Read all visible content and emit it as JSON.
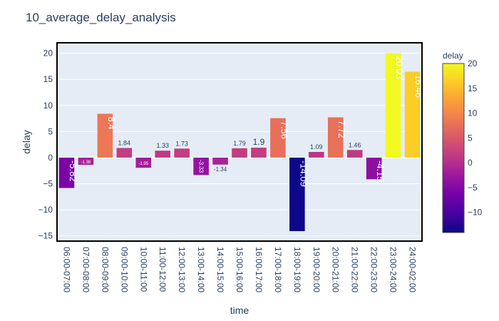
{
  "chart_data": {
    "type": "bar",
    "title": "10_average_delay_analysis",
    "xlabel": "time",
    "ylabel": "delay",
    "ylim": [
      -16,
      22
    ],
    "y_ticks": [
      -15,
      -10,
      -5,
      0,
      5,
      10,
      15,
      20
    ],
    "y_tick_labels": [
      "−15",
      "−10",
      "−5",
      "0",
      "5",
      "10",
      "15",
      "20"
    ],
    "categories": [
      "06:00-07:00",
      "07:00-08:00",
      "08:00-09:00",
      "09:00-10:00",
      "10:00-11:00",
      "11:00-12:00",
      "12:00-13:00",
      "13:00-14:00",
      "14:00-15:00",
      "15:00-16:00",
      "16:00-17:00",
      "17:00-18:00",
      "18:00-19:00",
      "19:00-20:00",
      "20:00-21:00",
      "21:00-22:00",
      "22:00-23:00",
      "23:00-24:00",
      "24:00-02:00"
    ],
    "values": [
      -5.82,
      -1.38,
      8.4,
      1.84,
      -1.95,
      1.33,
      1.73,
      -3.33,
      -1.34,
      1.79,
      1.9,
      7.56,
      -14.09,
      1.09,
      7.72,
      1.46,
      -4.15,
      20.03,
      16.46
    ],
    "value_labels": [
      "-5.82",
      "-1.38",
      "8.4",
      "1.84",
      "-1.95",
      "1.33",
      "1.73",
      "-3.33",
      "-1.34",
      "1.79",
      "1.9",
      "7.56",
      "-14.09",
      "1.09",
      "7.72",
      "1.46",
      "-4.15",
      "20.03",
      "16.46"
    ],
    "colorscale": "plasma",
    "colorbar": {
      "title": "delay",
      "range": [
        -14.09,
        20.03
      ],
      "ticks": [
        -10,
        -5,
        0,
        5,
        10,
        15,
        20
      ],
      "tick_labels": [
        "−10",
        "−5",
        "0",
        "5",
        "10",
        "15",
        "20"
      ]
    },
    "plot_background": "#e5ecf6",
    "grid": true
  }
}
